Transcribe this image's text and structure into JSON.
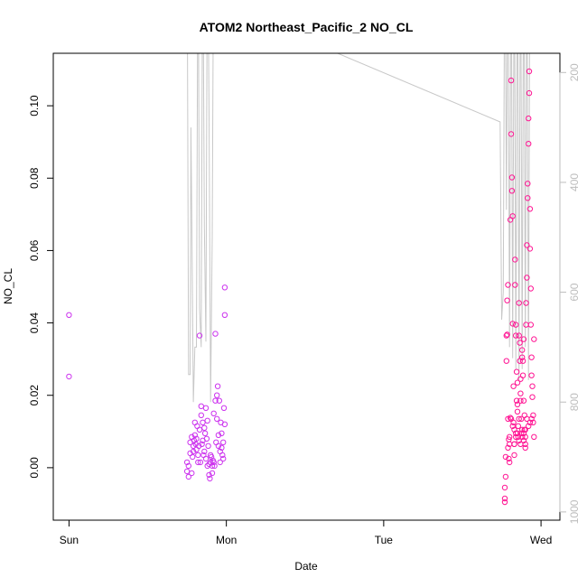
{
  "chart_data": {
    "type": "scatter",
    "title": "ATOM2 Northeast_Pacific_2 NO_CL",
    "xlabel": "Date",
    "ylabel": "NO_CL",
    "x_ticks": [
      "Sun",
      "Mon",
      "Tue",
      "Wed"
    ],
    "xlim_days": [
      -0.1,
      3.12
    ],
    "ylim": [
      -0.0145,
      0.1145
    ],
    "y_ticks": [
      0.0,
      0.02,
      0.04,
      0.06,
      0.08,
      0.1
    ],
    "y_tick_labels": [
      "0.00",
      "0.02",
      "0.04",
      "0.06",
      "0.08",
      "0.10"
    ],
    "y2_ticks": [
      200,
      400,
      600,
      800,
      1000
    ],
    "y2_tick_labels": [
      "200",
      "400",
      "600",
      "800",
      "1000"
    ],
    "y2lim_reversed": [
      1015,
      165
    ],
    "colors": {
      "points_mon": "#cc33ee",
      "points_wed": "#ff1493",
      "altitude_line": "#c8c8c8",
      "axis": "#000000",
      "y2_axis": "#bdbdbd"
    },
    "series": [
      {
        "kind": "points",
        "color_key": "points_mon",
        "points": [
          [
            0.0,
            0.0422
          ],
          [
            0.0,
            0.0252
          ],
          [
            0.75,
            0.0015
          ],
          [
            0.75,
            -0.001
          ],
          [
            0.76,
            -0.0025
          ],
          [
            0.76,
            0.0005
          ],
          [
            0.77,
            0.004
          ],
          [
            0.77,
            0.007
          ],
          [
            0.78,
            0.0085
          ],
          [
            0.78,
            -0.0015
          ],
          [
            0.79,
            0.0045
          ],
          [
            0.79,
            0.006
          ],
          [
            0.8,
            0.0125
          ],
          [
            0.8,
            0.009
          ],
          [
            0.81,
            0.005
          ],
          [
            0.81,
            0.008
          ],
          [
            0.82,
            0.0035
          ],
          [
            0.82,
            0.0015
          ],
          [
            0.83,
            0.0365
          ],
          [
            0.83,
            0.0105
          ],
          [
            0.84,
            0.0145
          ],
          [
            0.84,
            0.017
          ],
          [
            0.85,
            0.0075
          ],
          [
            0.85,
            0.0125
          ],
          [
            0.86,
            0.011
          ],
          [
            0.86,
            0.0045
          ],
          [
            0.87,
            0.0025
          ],
          [
            0.87,
            0.0165
          ],
          [
            0.88,
            0.013
          ],
          [
            0.88,
            0.0005
          ],
          [
            0.89,
            -0.002
          ],
          [
            0.89,
            0.001
          ],
          [
            0.9,
            0.0035
          ],
          [
            0.9,
            0.0015
          ],
          [
            0.91,
            0.0005
          ],
          [
            0.91,
            -0.0015
          ],
          [
            0.92,
            0.015
          ],
          [
            0.92,
            0.0015
          ],
          [
            0.93,
            0.037
          ],
          [
            0.93,
            0.0185
          ],
          [
            0.94,
            0.02
          ],
          [
            0.94,
            0.0135
          ],
          [
            0.95,
            0.009
          ],
          [
            0.95,
            0.006
          ],
          [
            0.96,
            0.0045
          ],
          [
            0.96,
            0.0015
          ],
          [
            0.97,
            0.0095
          ],
          [
            0.97,
            0.0055
          ],
          [
            0.98,
            0.0025
          ],
          [
            0.98,
            0.007
          ],
          [
            0.99,
            0.0422
          ],
          [
            0.99,
            0.0498
          ],
          [
            0.99,
            0.012
          ],
          [
            0.985,
            0.0165
          ],
          [
            0.975,
            0.0035
          ],
          [
            0.965,
            0.0125
          ],
          [
            0.955,
            0.0185
          ],
          [
            0.945,
            0.0225
          ],
          [
            0.935,
            0.007
          ],
          [
            0.925,
            0.0005
          ],
          [
            0.915,
            0.002
          ],
          [
            0.905,
            0.003
          ],
          [
            0.895,
            -0.003
          ],
          [
            0.885,
            0.006
          ],
          [
            0.875,
            0.008
          ],
          [
            0.865,
            0.0095
          ],
          [
            0.855,
            0.0035
          ],
          [
            0.845,
            0.0065
          ],
          [
            0.835,
            0.0015
          ],
          [
            0.825,
            0.006
          ],
          [
            0.815,
            0.0115
          ],
          [
            0.805,
            0.0065
          ],
          [
            0.795,
            0.0075
          ],
          [
            0.785,
            0.003
          ]
        ]
      },
      {
        "kind": "points",
        "color_key": "points_wed",
        "points": [
          [
            2.77,
            -0.0095
          ],
          [
            2.77,
            -0.0085
          ],
          [
            2.77,
            -0.0055
          ],
          [
            2.775,
            -0.0025
          ],
          [
            2.775,
            0.003
          ],
          [
            2.78,
            0.0295
          ],
          [
            2.78,
            0.0365
          ],
          [
            2.785,
            0.0368
          ],
          [
            2.785,
            0.0462
          ],
          [
            2.79,
            0.0505
          ],
          [
            2.79,
            0.0135
          ],
          [
            2.795,
            0.0078
          ],
          [
            2.795,
            0.0025
          ],
          [
            2.8,
            0.0015
          ],
          [
            2.8,
            0.0065
          ],
          [
            2.805,
            0.0138
          ],
          [
            2.805,
            0.0685
          ],
          [
            2.81,
            0.0922
          ],
          [
            2.81,
            0.107
          ],
          [
            2.815,
            0.0802
          ],
          [
            2.815,
            0.0765
          ],
          [
            2.82,
            0.0695
          ],
          [
            2.82,
            0.0398
          ],
          [
            2.825,
            0.0225
          ],
          [
            2.825,
            0.0125
          ],
          [
            2.83,
            0.0065
          ],
          [
            2.83,
            0.0035
          ],
          [
            2.835,
            0.0575
          ],
          [
            2.835,
            0.0505
          ],
          [
            2.84,
            0.0395
          ],
          [
            2.84,
            0.0365
          ],
          [
            2.845,
            0.0265
          ],
          [
            2.845,
            0.0185
          ],
          [
            2.85,
            0.0235
          ],
          [
            2.85,
            0.0175
          ],
          [
            2.855,
            0.0115
          ],
          [
            2.855,
            0.0085
          ],
          [
            2.86,
            0.0455
          ],
          [
            2.86,
            0.0365
          ],
          [
            2.865,
            0.0345
          ],
          [
            2.865,
            0.0295
          ],
          [
            2.87,
            0.0245
          ],
          [
            2.87,
            0.0205
          ],
          [
            2.875,
            0.0135
          ],
          [
            2.875,
            0.0095
          ],
          [
            2.88,
            0.0325
          ],
          [
            2.88,
            0.0305
          ],
          [
            2.885,
            0.0295
          ],
          [
            2.885,
            0.0255
          ],
          [
            2.89,
            0.0355
          ],
          [
            2.89,
            0.0185
          ],
          [
            2.895,
            0.0145
          ],
          [
            2.895,
            0.0105
          ],
          [
            2.9,
            0.0085
          ],
          [
            2.9,
            0.0065
          ],
          [
            2.905,
            0.0395
          ],
          [
            2.905,
            0.0455
          ],
          [
            2.91,
            0.0525
          ],
          [
            2.91,
            0.0615
          ],
          [
            2.915,
            0.0745
          ],
          [
            2.915,
            0.0785
          ],
          [
            2.92,
            0.0895
          ],
          [
            2.92,
            0.0965
          ],
          [
            2.925,
            0.1035
          ],
          [
            2.925,
            0.1095
          ],
          [
            2.93,
            0.0715
          ],
          [
            2.93,
            0.0605
          ],
          [
            2.935,
            0.0495
          ],
          [
            2.935,
            0.0395
          ],
          [
            2.94,
            0.0305
          ],
          [
            2.94,
            0.0255
          ],
          [
            2.945,
            0.0225
          ],
          [
            2.945,
            0.0195
          ],
          [
            2.95,
            0.0145
          ],
          [
            2.95,
            0.0125
          ],
          [
            2.955,
            0.0355
          ],
          [
            2.955,
            0.0085
          ],
          [
            2.83,
            0.0105
          ],
          [
            2.84,
            0.0085
          ],
          [
            2.85,
            0.0095
          ],
          [
            2.86,
            0.0075
          ],
          [
            2.87,
            0.0065
          ],
          [
            2.88,
            0.0085
          ],
          [
            2.89,
            0.0095
          ],
          [
            2.9,
            0.0105
          ],
          [
            2.91,
            0.0135
          ],
          [
            2.92,
            0.0115
          ],
          [
            2.93,
            0.0125
          ],
          [
            2.94,
            0.0135
          ],
          [
            2.79,
            0.0055
          ],
          [
            2.8,
            0.0085
          ],
          [
            2.81,
            0.0135
          ],
          [
            2.82,
            0.0115
          ],
          [
            2.83,
            0.0065
          ],
          [
            2.84,
            0.0095
          ],
          [
            2.85,
            0.0155
          ],
          [
            2.86,
            0.0135
          ],
          [
            2.87,
            0.0185
          ],
          [
            2.88,
            0.0105
          ],
          [
            2.89,
            0.0075
          ],
          [
            2.9,
            0.0055
          ]
        ]
      }
    ],
    "altitude_line": {
      "color_key": "altitude_line",
      "axis": "y2",
      "points": [
        [
          0.75,
          -100
        ],
        [
          0.76,
          750
        ],
        [
          0.77,
          750
        ],
        [
          0.775,
          300
        ],
        [
          0.78,
          450
        ],
        [
          0.79,
          800
        ],
        [
          0.8,
          700
        ],
        [
          0.81,
          700
        ],
        [
          0.82,
          -100
        ],
        [
          0.83,
          630
        ],
        [
          0.84,
          700
        ],
        [
          0.85,
          -100
        ],
        [
          0.86,
          480
        ],
        [
          0.87,
          690
        ],
        [
          0.88,
          -100
        ],
        [
          0.89,
          280
        ],
        [
          0.9,
          800
        ],
        [
          0.91,
          500
        ],
        [
          0.92,
          -100
        ],
        [
          1.0,
          -100
        ],
        [
          1.2,
          -100
        ],
        [
          1.5,
          140
        ],
        [
          2.74,
          290
        ],
        [
          2.75,
          650
        ],
        [
          2.76,
          600
        ],
        [
          2.77,
          -100
        ],
        [
          2.78,
          450
        ],
        [
          2.79,
          -100
        ],
        [
          2.8,
          700
        ],
        [
          2.81,
          -100
        ],
        [
          2.82,
          720
        ],
        [
          2.83,
          -100
        ],
        [
          2.84,
          740
        ],
        [
          2.85,
          -100
        ],
        [
          2.86,
          760
        ],
        [
          2.87,
          -100
        ],
        [
          2.88,
          740
        ],
        [
          2.89,
          -100
        ],
        [
          2.9,
          700
        ],
        [
          2.91,
          -100
        ],
        [
          2.92,
          760
        ],
        [
          2.93,
          -100
        ],
        [
          2.95,
          -100
        ]
      ]
    }
  }
}
